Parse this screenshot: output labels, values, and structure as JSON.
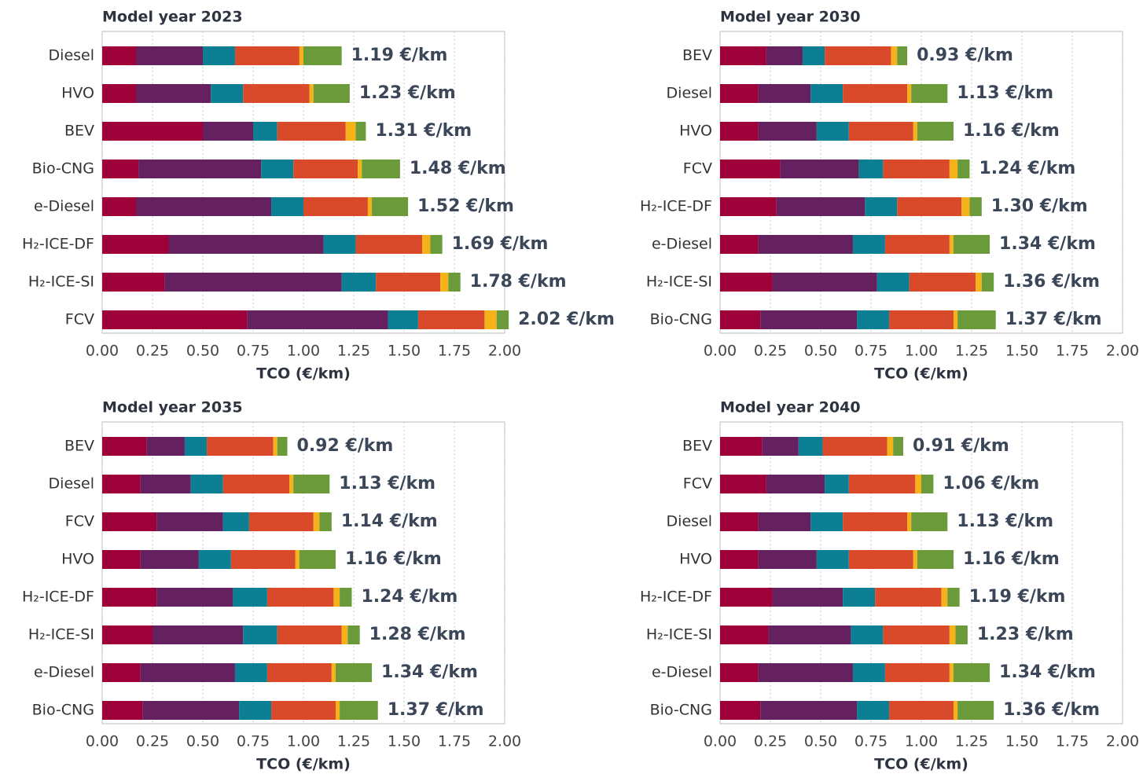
{
  "chart_data": [
    {
      "type": "bar",
      "orientation": "horizontal",
      "stacked": true,
      "title": "Model year 2023",
      "categories": [
        "Diesel",
        "HVO",
        "BEV",
        "Bio-CNG",
        "e-Diesel",
        "H₂-ICE-DF",
        "H₂-ICE-SI",
        "FCV"
      ],
      "series": [
        {
          "color": "#9e0039",
          "values": [
            0.17,
            0.17,
            0.5,
            0.18,
            0.17,
            0.33,
            0.31,
            0.72
          ]
        },
        {
          "color": "#65215f",
          "values": [
            0.33,
            0.37,
            0.25,
            0.61,
            0.67,
            0.77,
            0.88,
            0.7
          ]
        },
        {
          "color": "#0d7f95",
          "values": [
            0.16,
            0.16,
            0.12,
            0.16,
            0.16,
            0.16,
            0.17,
            0.15
          ]
        },
        {
          "color": "#d94a2b",
          "values": [
            0.32,
            0.33,
            0.34,
            0.32,
            0.32,
            0.33,
            0.32,
            0.33
          ]
        },
        {
          "color": "#f5b21a",
          "values": [
            0.02,
            0.02,
            0.05,
            0.02,
            0.02,
            0.04,
            0.04,
            0.06
          ]
        },
        {
          "color": "#6a9a3a",
          "values": [
            0.19,
            0.18,
            0.05,
            0.19,
            0.18,
            0.06,
            0.06,
            0.06
          ]
        }
      ],
      "totals": [
        1.19,
        1.23,
        1.31,
        1.48,
        1.52,
        1.69,
        1.78,
        2.02
      ],
      "total_labels": [
        "1.19 €/km",
        "1.23 €/km",
        "1.31 €/km",
        "1.48 €/km",
        "1.52 €/km",
        "1.69 €/km",
        "1.78 €/km",
        "2.02 €/km"
      ],
      "xlabel": "TCO (€/km)",
      "xlim": [
        0,
        2
      ],
      "xticks": [
        {
          "value": 0,
          "label": "0.00"
        },
        {
          "value": 0.25,
          "label": "0.25"
        },
        {
          "value": 0.5,
          "label": "0.50"
        },
        {
          "value": 0.75,
          "label": "0.75"
        },
        {
          "value": 1,
          "label": "1.00"
        },
        {
          "value": 1.25,
          "label": "1.25"
        },
        {
          "value": 1.5,
          "label": "1.50"
        },
        {
          "value": 1.75,
          "label": "1.75"
        },
        {
          "value": 2,
          "label": "2.00"
        }
      ],
      "grid": true
    },
    {
      "type": "bar",
      "orientation": "horizontal",
      "stacked": true,
      "title": "Model year 2030",
      "categories": [
        "BEV",
        "Diesel",
        "HVO",
        "FCV",
        "H₂-ICE-DF",
        "e-Diesel",
        "H₂-ICE-SI",
        "Bio-CNG"
      ],
      "series": [
        {
          "color": "#9e0039",
          "values": [
            0.23,
            0.19,
            0.19,
            0.3,
            0.28,
            0.19,
            0.26,
            0.2
          ]
        },
        {
          "color": "#65215f",
          "values": [
            0.18,
            0.26,
            0.29,
            0.39,
            0.44,
            0.47,
            0.52,
            0.48
          ]
        },
        {
          "color": "#0d7f95",
          "values": [
            0.11,
            0.16,
            0.16,
            0.12,
            0.16,
            0.16,
            0.16,
            0.16
          ]
        },
        {
          "color": "#d94a2b",
          "values": [
            0.33,
            0.32,
            0.32,
            0.33,
            0.32,
            0.32,
            0.33,
            0.32
          ]
        },
        {
          "color": "#f5b21a",
          "values": [
            0.03,
            0.02,
            0.02,
            0.04,
            0.04,
            0.02,
            0.03,
            0.02
          ]
        },
        {
          "color": "#6a9a3a",
          "values": [
            0.05,
            0.18,
            0.18,
            0.06,
            0.06,
            0.18,
            0.06,
            0.19
          ]
        }
      ],
      "totals": [
        0.93,
        1.13,
        1.16,
        1.24,
        1.3,
        1.34,
        1.36,
        1.37
      ],
      "total_labels": [
        "0.93 €/km",
        "1.13 €/km",
        "1.16 €/km",
        "1.24 €/km",
        "1.30 €/km",
        "1.34 €/km",
        "1.36 €/km",
        "1.37 €/km"
      ],
      "xlabel": "TCO (€/km)",
      "xlim": [
        0,
        2
      ],
      "xticks": [
        {
          "value": 0,
          "label": "0.00"
        },
        {
          "value": 0.25,
          "label": "0.25"
        },
        {
          "value": 0.5,
          "label": "0.50"
        },
        {
          "value": 0.75,
          "label": "0.75"
        },
        {
          "value": 1,
          "label": "1.00"
        },
        {
          "value": 1.25,
          "label": "1.25"
        },
        {
          "value": 1.5,
          "label": "1.50"
        },
        {
          "value": 1.75,
          "label": "1.75"
        },
        {
          "value": 2,
          "label": "2.00"
        }
      ],
      "grid": true
    },
    {
      "type": "bar",
      "orientation": "horizontal",
      "stacked": true,
      "title": "Model year 2035",
      "categories": [
        "BEV",
        "Diesel",
        "FCV",
        "HVO",
        "H₂-ICE-DF",
        "H₂-ICE-SI",
        "e-Diesel",
        "Bio-CNG"
      ],
      "series": [
        {
          "color": "#9e0039",
          "values": [
            0.22,
            0.19,
            0.27,
            0.19,
            0.27,
            0.25,
            0.19,
            0.2
          ]
        },
        {
          "color": "#65215f",
          "values": [
            0.19,
            0.25,
            0.33,
            0.29,
            0.38,
            0.45,
            0.47,
            0.48
          ]
        },
        {
          "color": "#0d7f95",
          "values": [
            0.11,
            0.16,
            0.13,
            0.16,
            0.17,
            0.17,
            0.16,
            0.16
          ]
        },
        {
          "color": "#d94a2b",
          "values": [
            0.33,
            0.33,
            0.32,
            0.32,
            0.33,
            0.32,
            0.32,
            0.32
          ]
        },
        {
          "color": "#f5b21a",
          "values": [
            0.02,
            0.02,
            0.03,
            0.02,
            0.03,
            0.03,
            0.02,
            0.02
          ]
        },
        {
          "color": "#6a9a3a",
          "values": [
            0.05,
            0.18,
            0.06,
            0.18,
            0.06,
            0.06,
            0.18,
            0.19
          ]
        }
      ],
      "totals": [
        0.92,
        1.13,
        1.14,
        1.16,
        1.24,
        1.28,
        1.34,
        1.37
      ],
      "total_labels": [
        "0.92 €/km",
        "1.13 €/km",
        "1.14 €/km",
        "1.16 €/km",
        "1.24 €/km",
        "1.28 €/km",
        "1.34 €/km",
        "1.37 €/km"
      ],
      "xlabel": "TCO (€/km)",
      "xlim": [
        0,
        2
      ],
      "xticks": [
        {
          "value": 0,
          "label": "0.00"
        },
        {
          "value": 0.25,
          "label": "0.25"
        },
        {
          "value": 0.5,
          "label": "0.50"
        },
        {
          "value": 0.75,
          "label": "0.75"
        },
        {
          "value": 1,
          "label": "1.00"
        },
        {
          "value": 1.25,
          "label": "1.25"
        },
        {
          "value": 1.5,
          "label": "1.50"
        },
        {
          "value": 1.75,
          "label": "1.75"
        },
        {
          "value": 2,
          "label": "2.00"
        }
      ],
      "grid": true
    },
    {
      "type": "bar",
      "orientation": "horizontal",
      "stacked": true,
      "title": "Model year 2040",
      "categories": [
        "BEV",
        "FCV",
        "Diesel",
        "HVO",
        "H₂-ICE-DF",
        "H₂-ICE-SI",
        "e-Diesel",
        "Bio-CNG"
      ],
      "series": [
        {
          "color": "#9e0039",
          "values": [
            0.21,
            0.23,
            0.19,
            0.19,
            0.26,
            0.24,
            0.19,
            0.2
          ]
        },
        {
          "color": "#65215f",
          "values": [
            0.18,
            0.29,
            0.26,
            0.29,
            0.35,
            0.41,
            0.47,
            0.48
          ]
        },
        {
          "color": "#0d7f95",
          "values": [
            0.12,
            0.12,
            0.16,
            0.16,
            0.16,
            0.16,
            0.16,
            0.16
          ]
        },
        {
          "color": "#d94a2b",
          "values": [
            0.32,
            0.33,
            0.32,
            0.32,
            0.33,
            0.33,
            0.32,
            0.32
          ]
        },
        {
          "color": "#f5b21a",
          "values": [
            0.03,
            0.03,
            0.02,
            0.02,
            0.03,
            0.03,
            0.02,
            0.02
          ]
        },
        {
          "color": "#6a9a3a",
          "values": [
            0.05,
            0.06,
            0.18,
            0.18,
            0.06,
            0.06,
            0.18,
            0.18
          ]
        }
      ],
      "totals": [
        0.91,
        1.06,
        1.13,
        1.16,
        1.19,
        1.23,
        1.34,
        1.36
      ],
      "total_labels": [
        "0.91 €/km",
        "1.06 €/km",
        "1.13 €/km",
        "1.16 €/km",
        "1.19 €/km",
        "1.23 €/km",
        "1.34 €/km",
        "1.36 €/km"
      ],
      "xlabel": "TCO (€/km)",
      "xlim": [
        0,
        2
      ],
      "xticks": [
        {
          "value": 0,
          "label": "0.00"
        },
        {
          "value": 0.25,
          "label": "0.25"
        },
        {
          "value": 0.5,
          "label": "0.50"
        },
        {
          "value": 0.75,
          "label": "0.75"
        },
        {
          "value": 1,
          "label": "1.00"
        },
        {
          "value": 1.25,
          "label": "1.25"
        },
        {
          "value": 1.5,
          "label": "1.50"
        },
        {
          "value": 1.75,
          "label": "1.75"
        },
        {
          "value": 2,
          "label": "2.00"
        }
      ],
      "grid": true
    }
  ]
}
